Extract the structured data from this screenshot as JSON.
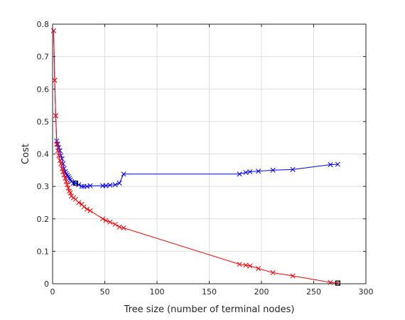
{
  "chart_data": {
    "type": "line",
    "title": "",
    "xlabel": "Tree size (number of terminal nodes)",
    "ylabel": "Cost",
    "xlim": [
      0,
      300
    ],
    "ylim": [
      0,
      0.8
    ],
    "xticks": [
      0,
      50,
      100,
      150,
      200,
      250,
      300
    ],
    "yticks": [
      0,
      0.1,
      0.2,
      0.3,
      0.4,
      0.5,
      0.6,
      0.7,
      0.8
    ],
    "grid": true,
    "legend": "none",
    "marker": "x",
    "series": [
      {
        "color": "#0000ff",
        "x": [
          1,
          2,
          3,
          4,
          5,
          6,
          7,
          8,
          9,
          10,
          11,
          12,
          13,
          14,
          15,
          16,
          17,
          18,
          20,
          22,
          25,
          28,
          30,
          33,
          36,
          48,
          51,
          55,
          60,
          64,
          68,
          179,
          185,
          189,
          197,
          211,
          230,
          266,
          273
        ],
        "y": [
          0.78,
          0.627,
          0.518,
          0.44,
          0.43,
          0.42,
          0.41,
          0.395,
          0.385,
          0.37,
          0.355,
          0.345,
          0.34,
          0.335,
          0.33,
          0.325,
          0.32,
          0.315,
          0.31,
          0.31,
          0.305,
          0.3,
          0.3,
          0.3,
          0.302,
          0.302,
          0.302,
          0.304,
          0.305,
          0.31,
          0.338,
          0.338,
          0.343,
          0.345,
          0.347,
          0.35,
          0.352,
          0.367,
          0.368
        ]
      },
      {
        "color": "#ff0000",
        "x": [
          1,
          2,
          3,
          4,
          5,
          6,
          7,
          8,
          9,
          10,
          11,
          12,
          13,
          14,
          15,
          16,
          17,
          18,
          20,
          22,
          25,
          28,
          30,
          33,
          36,
          48,
          51,
          55,
          60,
          64,
          68,
          179,
          185,
          189,
          197,
          211,
          230,
          266,
          273
        ],
        "y": [
          0.78,
          0.627,
          0.518,
          0.43,
          0.41,
          0.395,
          0.38,
          0.37,
          0.355,
          0.345,
          0.335,
          0.325,
          0.315,
          0.305,
          0.295,
          0.285,
          0.28,
          0.27,
          0.265,
          0.26,
          0.25,
          0.245,
          0.237,
          0.23,
          0.225,
          0.2,
          0.195,
          0.19,
          0.183,
          0.175,
          0.172,
          0.06,
          0.057,
          0.055,
          0.047,
          0.034,
          0.024,
          0.004,
          0.002
        ]
      }
    ],
    "highlighted_points": [
      {
        "series": 0,
        "x": 22,
        "y": 0.31,
        "color": "#000000",
        "marker": "square"
      },
      {
        "series": 1,
        "x": 273,
        "y": 0.002,
        "color": "#000000",
        "marker": "square"
      }
    ]
  }
}
